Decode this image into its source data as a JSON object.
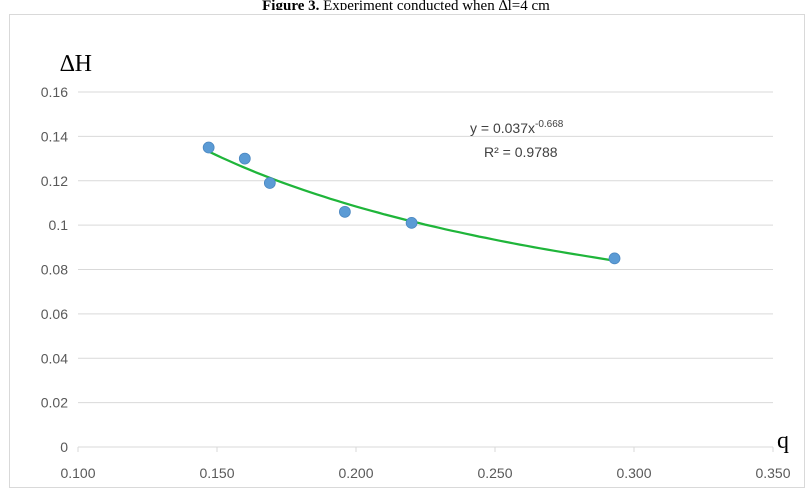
{
  "figure": {
    "caption_label": "Figure 3.",
    "caption_text": " Experiment conducted when ∆l=4 cm"
  },
  "chart_data": {
    "type": "scatter",
    "xlabel": "q",
    "ylabel": "∆H",
    "xlim": [
      0.1,
      0.35
    ],
    "ylim": [
      0,
      0.16
    ],
    "x_ticks": [
      "0.100",
      "0.150",
      "0.200",
      "0.250",
      "0.300",
      "0.350"
    ],
    "y_ticks": [
      "0",
      "0.02",
      "0.04",
      "0.06",
      "0.08",
      "0.1",
      "0.12",
      "0.14",
      "0.16"
    ],
    "grid": "horizontal",
    "points": [
      {
        "x": 0.147,
        "y": 0.135
      },
      {
        "x": 0.16,
        "y": 0.13
      },
      {
        "x": 0.169,
        "y": 0.119
      },
      {
        "x": 0.196,
        "y": 0.106
      },
      {
        "x": 0.22,
        "y": 0.101
      },
      {
        "x": 0.293,
        "y": 0.085
      }
    ],
    "trendline": {
      "type": "power",
      "a": 0.037,
      "b": -0.668,
      "x_range": [
        0.147,
        0.293
      ],
      "equation_prefix": "y = 0.037x",
      "equation_exponent": "-0.668",
      "r_squared": "R² = 0.9788"
    },
    "colors": {
      "point": "#5b9bd5",
      "trendline": "#1fb53a",
      "gridline": "#d9d9d9",
      "tick_text": "#595959"
    }
  }
}
